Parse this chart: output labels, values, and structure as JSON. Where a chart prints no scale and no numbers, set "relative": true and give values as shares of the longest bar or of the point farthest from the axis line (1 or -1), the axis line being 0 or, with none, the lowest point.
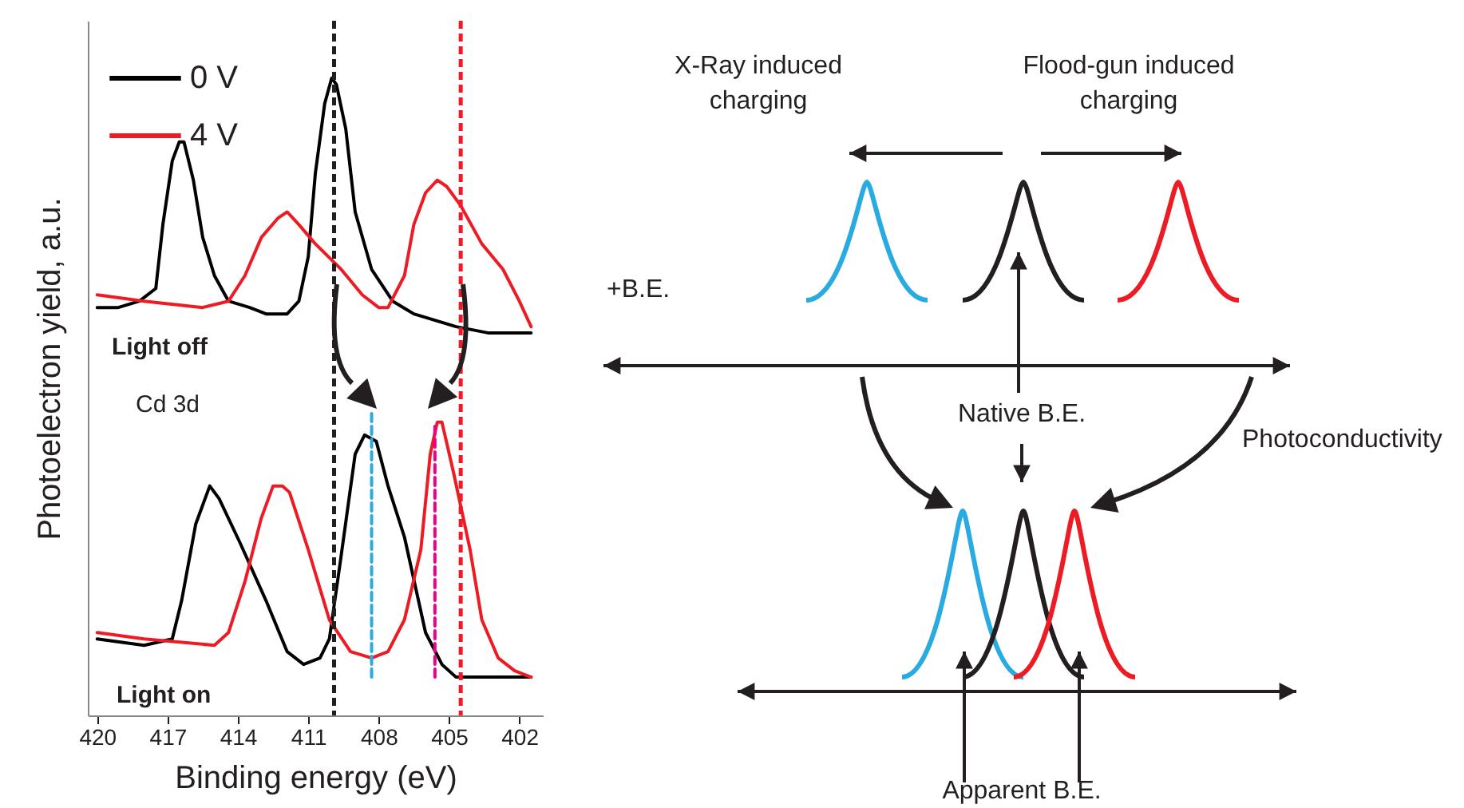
{
  "chart_data": [
    {
      "type": "line",
      "xlabel": "Binding energy (eV)",
      "ylabel": "Photoelectron yield, a.u.",
      "relative": true,
      "tick_labels": "x",
      "legend": "top left",
      "xlim": [
        420.4,
        401.0
      ],
      "xticks": [
        420,
        417,
        414,
        411,
        408,
        405,
        402
      ],
      "series": [
        {
          "name": "0 V",
          "color": "#000000",
          "x": [
            420.0,
            419.1,
            418.2,
            417.5,
            417.2,
            416.8,
            416.5,
            416.3,
            415.9,
            415.5,
            415.0,
            414.4,
            413.5,
            412.8,
            411.9,
            411.4,
            411.0,
            410.7,
            410.3,
            410.0,
            409.8,
            409.4,
            409.0,
            408.3,
            407.4,
            406.5,
            405.6,
            404.7,
            403.3,
            401.5
          ],
          "values": [
            0.64,
            0.64,
            0.65,
            0.67,
            0.77,
            0.87,
            0.9,
            0.9,
            0.84,
            0.75,
            0.69,
            0.65,
            0.64,
            0.63,
            0.63,
            0.65,
            0.72,
            0.85,
            0.96,
            1.0,
            0.99,
            0.92,
            0.79,
            0.7,
            0.65,
            0.63,
            0.62,
            0.61,
            0.6,
            0.6
          ]
        },
        {
          "name": "4 V",
          "color": "#ed1c24",
          "x": [
            420.0,
            418.0,
            415.5,
            414.4,
            413.7,
            413.0,
            412.3,
            411.9,
            411.4,
            410.7,
            409.6,
            408.7,
            408.0,
            407.6,
            406.9,
            406.5,
            406.0,
            405.5,
            405.1,
            404.5,
            403.6,
            402.7,
            402.0,
            401.5
          ],
          "values": [
            0.66,
            0.65,
            0.64,
            0.65,
            0.69,
            0.75,
            0.78,
            0.79,
            0.77,
            0.74,
            0.7,
            0.66,
            0.64,
            0.64,
            0.69,
            0.77,
            0.82,
            0.84,
            0.83,
            0.8,
            0.74,
            0.7,
            0.65,
            0.61
          ]
        },
        {
          "color": "#000000",
          "x": [
            420.0,
            418.0,
            416.8,
            416.4,
            415.8,
            415.2,
            414.8,
            413.9,
            412.8,
            411.9,
            411.2,
            410.5,
            410.1,
            409.6,
            409.0,
            408.6,
            408.1,
            407.6,
            406.9,
            406.0,
            405.3,
            404.7,
            403.3,
            401.5
          ],
          "values": [
            0.12,
            0.11,
            0.12,
            0.18,
            0.3,
            0.36,
            0.34,
            0.27,
            0.18,
            0.1,
            0.08,
            0.09,
            0.12,
            0.25,
            0.41,
            0.44,
            0.43,
            0.36,
            0.28,
            0.13,
            0.08,
            0.06,
            0.06,
            0.06
          ]
        },
        {
          "color": "#ed1c24",
          "x": [
            420.0,
            418.0,
            415.0,
            414.4,
            413.7,
            413.0,
            412.5,
            412.1,
            411.8,
            411.0,
            410.1,
            409.2,
            408.3,
            407.6,
            406.9,
            406.2,
            405.8,
            405.5,
            405.3,
            404.8,
            404.1,
            403.6,
            402.9,
            402.2,
            401.5
          ],
          "values": [
            0.13,
            0.12,
            0.11,
            0.13,
            0.21,
            0.31,
            0.36,
            0.36,
            0.35,
            0.26,
            0.15,
            0.1,
            0.09,
            0.1,
            0.15,
            0.26,
            0.41,
            0.46,
            0.46,
            0.38,
            0.26,
            0.15,
            0.09,
            0.07,
            0.06
          ]
        },
        {
          "color": "#29abe2",
          "type": "line",
          "line_style": "dashed",
          "x": [
            408.3,
            408.3
          ],
          "values": [
            0.06,
            0.48
          ]
        },
        {
          "color": "#ec008c",
          "type": "line",
          "line_style": "dashed",
          "x": [
            405.6,
            405.6
          ],
          "values": [
            0.06,
            0.46
          ]
        }
      ],
      "ref_lines": [
        {
          "axis": "x",
          "value": 409.9,
          "color": "#231f20",
          "line_style": "dashed"
        },
        {
          "axis": "x",
          "value": 404.5,
          "color": "#ed1c24",
          "line_style": "dashed"
        }
      ],
      "annotations": [
        "Light off",
        "Cd 3d",
        "Light on"
      ]
    },
    {
      "type": "other",
      "annotations": [
        "X-Ray induced charging",
        "Flood-gun induced charging",
        "+B.E.",
        "Native B.E.",
        "Photoconductivity",
        "Apparent B.E."
      ]
    }
  ]
}
